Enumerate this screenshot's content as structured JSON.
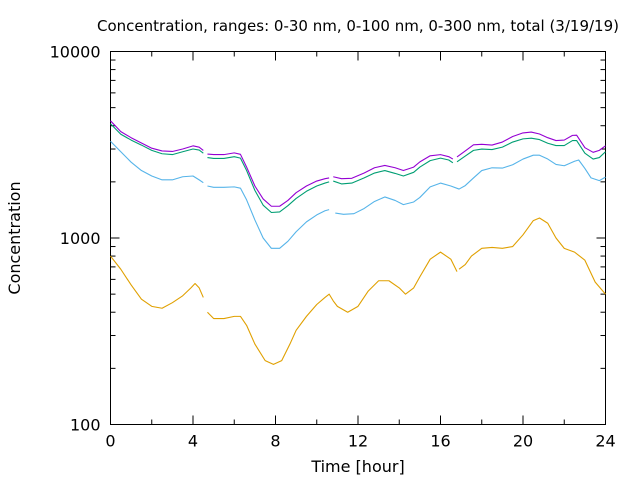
{
  "chart_data": {
    "type": "line",
    "title": "Concentration, ranges: 0-30 nm, 0-100 nm, 0-300 nm, total (3/19/19)",
    "xlabel": "Time [hour]",
    "ylabel": "Concentration",
    "xlim": [
      0,
      24
    ],
    "ylim": [
      100,
      10000
    ],
    "yscale": "log",
    "grid": false,
    "legend": "none",
    "x_ticks": [
      "0",
      "4",
      "8",
      "12",
      "16",
      "20",
      "24"
    ],
    "y_ticks": [
      "100",
      "1000",
      "10000"
    ],
    "series": [
      {
        "color": "#e0a000",
        "points": [
          [
            0,
            800
          ],
          [
            0.5,
            680
          ],
          [
            1,
            560
          ],
          [
            1.5,
            470
          ],
          [
            2,
            430
          ],
          [
            2.5,
            420
          ],
          [
            3,
            450
          ],
          [
            3.5,
            490
          ],
          [
            3.9,
            540
          ],
          [
            4.1,
            570
          ],
          [
            4.3,
            540
          ],
          [
            4.5,
            480
          ],
          null,
          [
            4.7,
            400
          ],
          [
            5,
            370
          ],
          [
            5.5,
            370
          ],
          [
            6,
            380
          ],
          [
            6.3,
            380
          ],
          [
            6.6,
            340
          ],
          [
            7,
            270
          ],
          [
            7.5,
            220
          ],
          [
            7.9,
            210
          ],
          [
            8.3,
            220
          ],
          [
            8.7,
            270
          ],
          [
            9,
            320
          ],
          [
            9.5,
            380
          ],
          [
            10,
            440
          ],
          [
            10.4,
            480
          ],
          [
            10.6,
            500
          ],
          [
            10.8,
            460
          ],
          [
            11,
            430
          ],
          [
            11.5,
            400
          ],
          [
            12,
            430
          ],
          [
            12.5,
            520
          ],
          [
            13,
            590
          ],
          [
            13.5,
            590
          ],
          [
            14,
            540
          ],
          [
            14.3,
            500
          ],
          [
            14.7,
            540
          ],
          [
            15,
            620
          ],
          [
            15.5,
            770
          ],
          [
            16,
            840
          ],
          [
            16.5,
            770
          ],
          [
            16.8,
            660
          ],
          null,
          [
            16.9,
            680
          ],
          [
            17.2,
            720
          ],
          [
            17.5,
            800
          ],
          [
            18,
            880
          ],
          [
            18.5,
            890
          ],
          [
            19,
            880
          ],
          [
            19.5,
            900
          ],
          [
            20,
            1040
          ],
          [
            20.5,
            1240
          ],
          [
            20.8,
            1280
          ],
          [
            21.2,
            1200
          ],
          [
            21.6,
            1000
          ],
          [
            22,
            880
          ],
          [
            22.5,
            840
          ],
          [
            23,
            760
          ],
          [
            23.5,
            580
          ],
          [
            24,
            500
          ]
        ]
      },
      {
        "color": "#56b4e9",
        "points": [
          [
            0,
            3300
          ],
          [
            0.5,
            2900
          ],
          [
            1,
            2550
          ],
          [
            1.5,
            2300
          ],
          [
            2,
            2150
          ],
          [
            2.5,
            2050
          ],
          [
            3,
            2050
          ],
          [
            3.5,
            2130
          ],
          [
            4,
            2150
          ],
          [
            4.3,
            2050
          ],
          [
            4.5,
            1980
          ],
          null,
          [
            4.7,
            1900
          ],
          [
            5,
            1870
          ],
          [
            5.5,
            1870
          ],
          [
            6,
            1880
          ],
          [
            6.3,
            1850
          ],
          [
            6.6,
            1600
          ],
          [
            7,
            1250
          ],
          [
            7.4,
            1000
          ],
          [
            7.8,
            880
          ],
          [
            8.2,
            880
          ],
          [
            8.6,
            960
          ],
          [
            9,
            1080
          ],
          [
            9.5,
            1220
          ],
          [
            10,
            1330
          ],
          [
            10.4,
            1400
          ],
          [
            10.6,
            1420
          ],
          null,
          [
            10.9,
            1360
          ],
          [
            11.3,
            1340
          ],
          [
            11.8,
            1350
          ],
          [
            12.3,
            1440
          ],
          [
            12.8,
            1570
          ],
          [
            13.3,
            1660
          ],
          [
            13.8,
            1590
          ],
          [
            14.2,
            1510
          ],
          [
            14.7,
            1560
          ],
          [
            15,
            1650
          ],
          [
            15.5,
            1880
          ],
          [
            16,
            1970
          ],
          [
            16.5,
            1900
          ],
          [
            16.9,
            1830
          ],
          [
            17.2,
            1910
          ],
          [
            17.6,
            2100
          ],
          [
            18,
            2300
          ],
          [
            18.5,
            2380
          ],
          [
            19,
            2370
          ],
          [
            19.5,
            2470
          ],
          [
            20,
            2650
          ],
          [
            20.5,
            2780
          ],
          [
            20.8,
            2780
          ],
          [
            21.2,
            2650
          ],
          [
            21.6,
            2480
          ],
          [
            22,
            2440
          ],
          [
            22.5,
            2580
          ],
          [
            22.7,
            2620
          ],
          [
            23,
            2360
          ],
          [
            23.3,
            2100
          ],
          [
            23.7,
            2030
          ],
          [
            24,
            2120
          ]
        ]
      },
      {
        "color": "#009e73",
        "points": [
          [
            0,
            4100
          ],
          [
            0.5,
            3600
          ],
          [
            1,
            3350
          ],
          [
            1.5,
            3150
          ],
          [
            2,
            2950
          ],
          [
            2.5,
            2830
          ],
          [
            3,
            2800
          ],
          [
            3.5,
            2900
          ],
          [
            4,
            3000
          ],
          [
            4.3,
            2960
          ],
          [
            4.5,
            2850
          ],
          null,
          [
            4.7,
            2700
          ],
          [
            5,
            2670
          ],
          [
            5.5,
            2670
          ],
          [
            6,
            2730
          ],
          [
            6.3,
            2680
          ],
          [
            6.6,
            2300
          ],
          [
            7,
            1800
          ],
          [
            7.4,
            1500
          ],
          [
            7.8,
            1370
          ],
          [
            8.2,
            1380
          ],
          [
            8.6,
            1490
          ],
          [
            9,
            1630
          ],
          [
            9.5,
            1780
          ],
          [
            10,
            1900
          ],
          [
            10.4,
            1970
          ],
          [
            10.6,
            2000
          ],
          null,
          [
            10.8,
            2020
          ],
          [
            11.2,
            1950
          ],
          [
            11.7,
            1970
          ],
          [
            12.3,
            2100
          ],
          [
            12.8,
            2230
          ],
          [
            13.3,
            2300
          ],
          [
            13.8,
            2220
          ],
          [
            14.2,
            2150
          ],
          [
            14.7,
            2250
          ],
          [
            15,
            2400
          ],
          [
            15.5,
            2600
          ],
          [
            16,
            2680
          ],
          [
            16.4,
            2620
          ],
          [
            16.6,
            2530
          ],
          null,
          [
            16.8,
            2560
          ],
          [
            17.2,
            2750
          ],
          [
            17.6,
            2950
          ],
          [
            18,
            3000
          ],
          [
            18.5,
            2980
          ],
          [
            19,
            3070
          ],
          [
            19.5,
            3270
          ],
          [
            20,
            3400
          ],
          [
            20.4,
            3430
          ],
          [
            20.8,
            3370
          ],
          [
            21.2,
            3220
          ],
          [
            21.6,
            3130
          ],
          [
            22,
            3130
          ],
          [
            22.4,
            3330
          ],
          [
            22.6,
            3330
          ],
          [
            23,
            2850
          ],
          [
            23.4,
            2650
          ],
          [
            23.7,
            2700
          ],
          [
            24,
            2900
          ]
        ]
      },
      {
        "color": "#9400d3",
        "points": [
          [
            0,
            4250
          ],
          [
            0.5,
            3720
          ],
          [
            1,
            3450
          ],
          [
            1.5,
            3230
          ],
          [
            2,
            3030
          ],
          [
            2.5,
            2930
          ],
          [
            3,
            2910
          ],
          [
            3.5,
            3000
          ],
          [
            4,
            3120
          ],
          [
            4.3,
            3070
          ],
          [
            4.5,
            2950
          ],
          null,
          [
            4.7,
            2820
          ],
          [
            5,
            2800
          ],
          [
            5.5,
            2800
          ],
          [
            6,
            2860
          ],
          [
            6.3,
            2810
          ],
          [
            6.6,
            2400
          ],
          [
            7,
            1900
          ],
          [
            7.4,
            1620
          ],
          [
            7.8,
            1480
          ],
          [
            8.2,
            1480
          ],
          [
            8.6,
            1590
          ],
          [
            9,
            1750
          ],
          [
            9.5,
            1900
          ],
          [
            10,
            2020
          ],
          [
            10.4,
            2080
          ],
          [
            10.6,
            2100
          ],
          null,
          [
            10.8,
            2130
          ],
          [
            11.2,
            2080
          ],
          [
            11.7,
            2090
          ],
          [
            12.3,
            2230
          ],
          [
            12.8,
            2380
          ],
          [
            13.3,
            2450
          ],
          [
            13.8,
            2380
          ],
          [
            14.2,
            2300
          ],
          [
            14.7,
            2400
          ],
          [
            15,
            2560
          ],
          [
            15.5,
            2760
          ],
          [
            16,
            2800
          ],
          [
            16.4,
            2730
          ],
          [
            16.6,
            2650
          ],
          null,
          [
            16.8,
            2720
          ],
          [
            17.2,
            2930
          ],
          [
            17.6,
            3160
          ],
          [
            18,
            3180
          ],
          [
            18.5,
            3150
          ],
          [
            19,
            3270
          ],
          [
            19.5,
            3500
          ],
          [
            20,
            3660
          ],
          [
            20.4,
            3700
          ],
          [
            20.8,
            3610
          ],
          [
            21.2,
            3450
          ],
          [
            21.6,
            3330
          ],
          [
            22,
            3350
          ],
          [
            22.4,
            3550
          ],
          [
            22.6,
            3560
          ],
          [
            23,
            3050
          ],
          [
            23.4,
            2880
          ],
          [
            23.7,
            2950
          ],
          [
            24,
            3120
          ]
        ]
      }
    ]
  }
}
